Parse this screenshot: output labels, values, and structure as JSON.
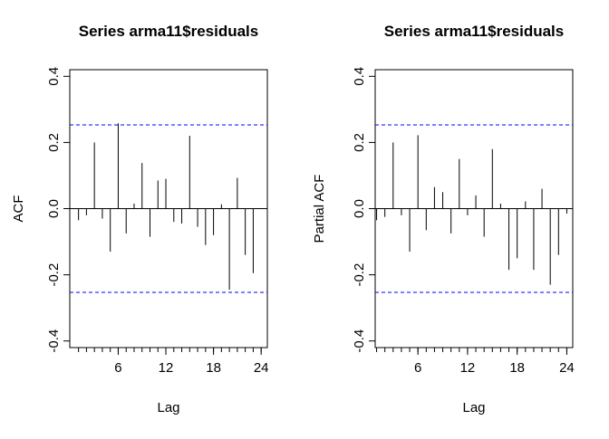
{
  "chart_data": [
    {
      "type": "bar",
      "title": "Series  arma11$residuals",
      "xlabel": "Lag",
      "ylabel": "ACF",
      "xlim": [
        0,
        24
      ],
      "ylim": [
        -0.4,
        0.4
      ],
      "x_ticks": [
        6,
        12,
        18,
        24
      ],
      "y_ticks": [
        -0.4,
        -0.2,
        0.0,
        0.2,
        0.4
      ],
      "confidence_bound": 0.253,
      "confidence_color": "#0000ff",
      "lags": [
        1,
        2,
        3,
        4,
        5,
        6,
        7,
        8,
        9,
        10,
        11,
        12,
        13,
        14,
        15,
        16,
        17,
        18,
        19,
        20,
        21,
        22,
        23
      ],
      "values": [
        -0.035,
        -0.02,
        0.2,
        -0.03,
        -0.13,
        0.258,
        -0.075,
        0.015,
        0.138,
        -0.085,
        0.085,
        0.09,
        -0.04,
        -0.045,
        0.22,
        -0.055,
        -0.11,
        -0.08,
        0.013,
        -0.245,
        0.093,
        -0.14,
        -0.195
      ]
    },
    {
      "type": "bar",
      "title": "Series  arma11$residuals",
      "xlabel": "Lag",
      "ylabel": "Partial ACF",
      "xlim": [
        1,
        24
      ],
      "ylim": [
        -0.4,
        0.4
      ],
      "x_ticks": [
        6,
        12,
        18,
        24
      ],
      "y_ticks": [
        -0.4,
        -0.2,
        0.0,
        0.2,
        0.4
      ],
      "confidence_bound": 0.253,
      "confidence_color": "#0000ff",
      "lags": [
        1,
        2,
        3,
        4,
        5,
        6,
        7,
        8,
        9,
        10,
        11,
        12,
        13,
        14,
        15,
        16,
        17,
        18,
        19,
        20,
        21,
        22,
        23,
        24
      ],
      "values": [
        -0.035,
        -0.025,
        0.2,
        -0.02,
        -0.13,
        0.222,
        -0.065,
        0.065,
        0.05,
        -0.075,
        0.15,
        -0.02,
        0.04,
        -0.085,
        0.18,
        0.015,
        -0.185,
        -0.15,
        0.022,
        -0.185,
        0.06,
        -0.23,
        -0.14,
        -0.015
      ]
    }
  ]
}
